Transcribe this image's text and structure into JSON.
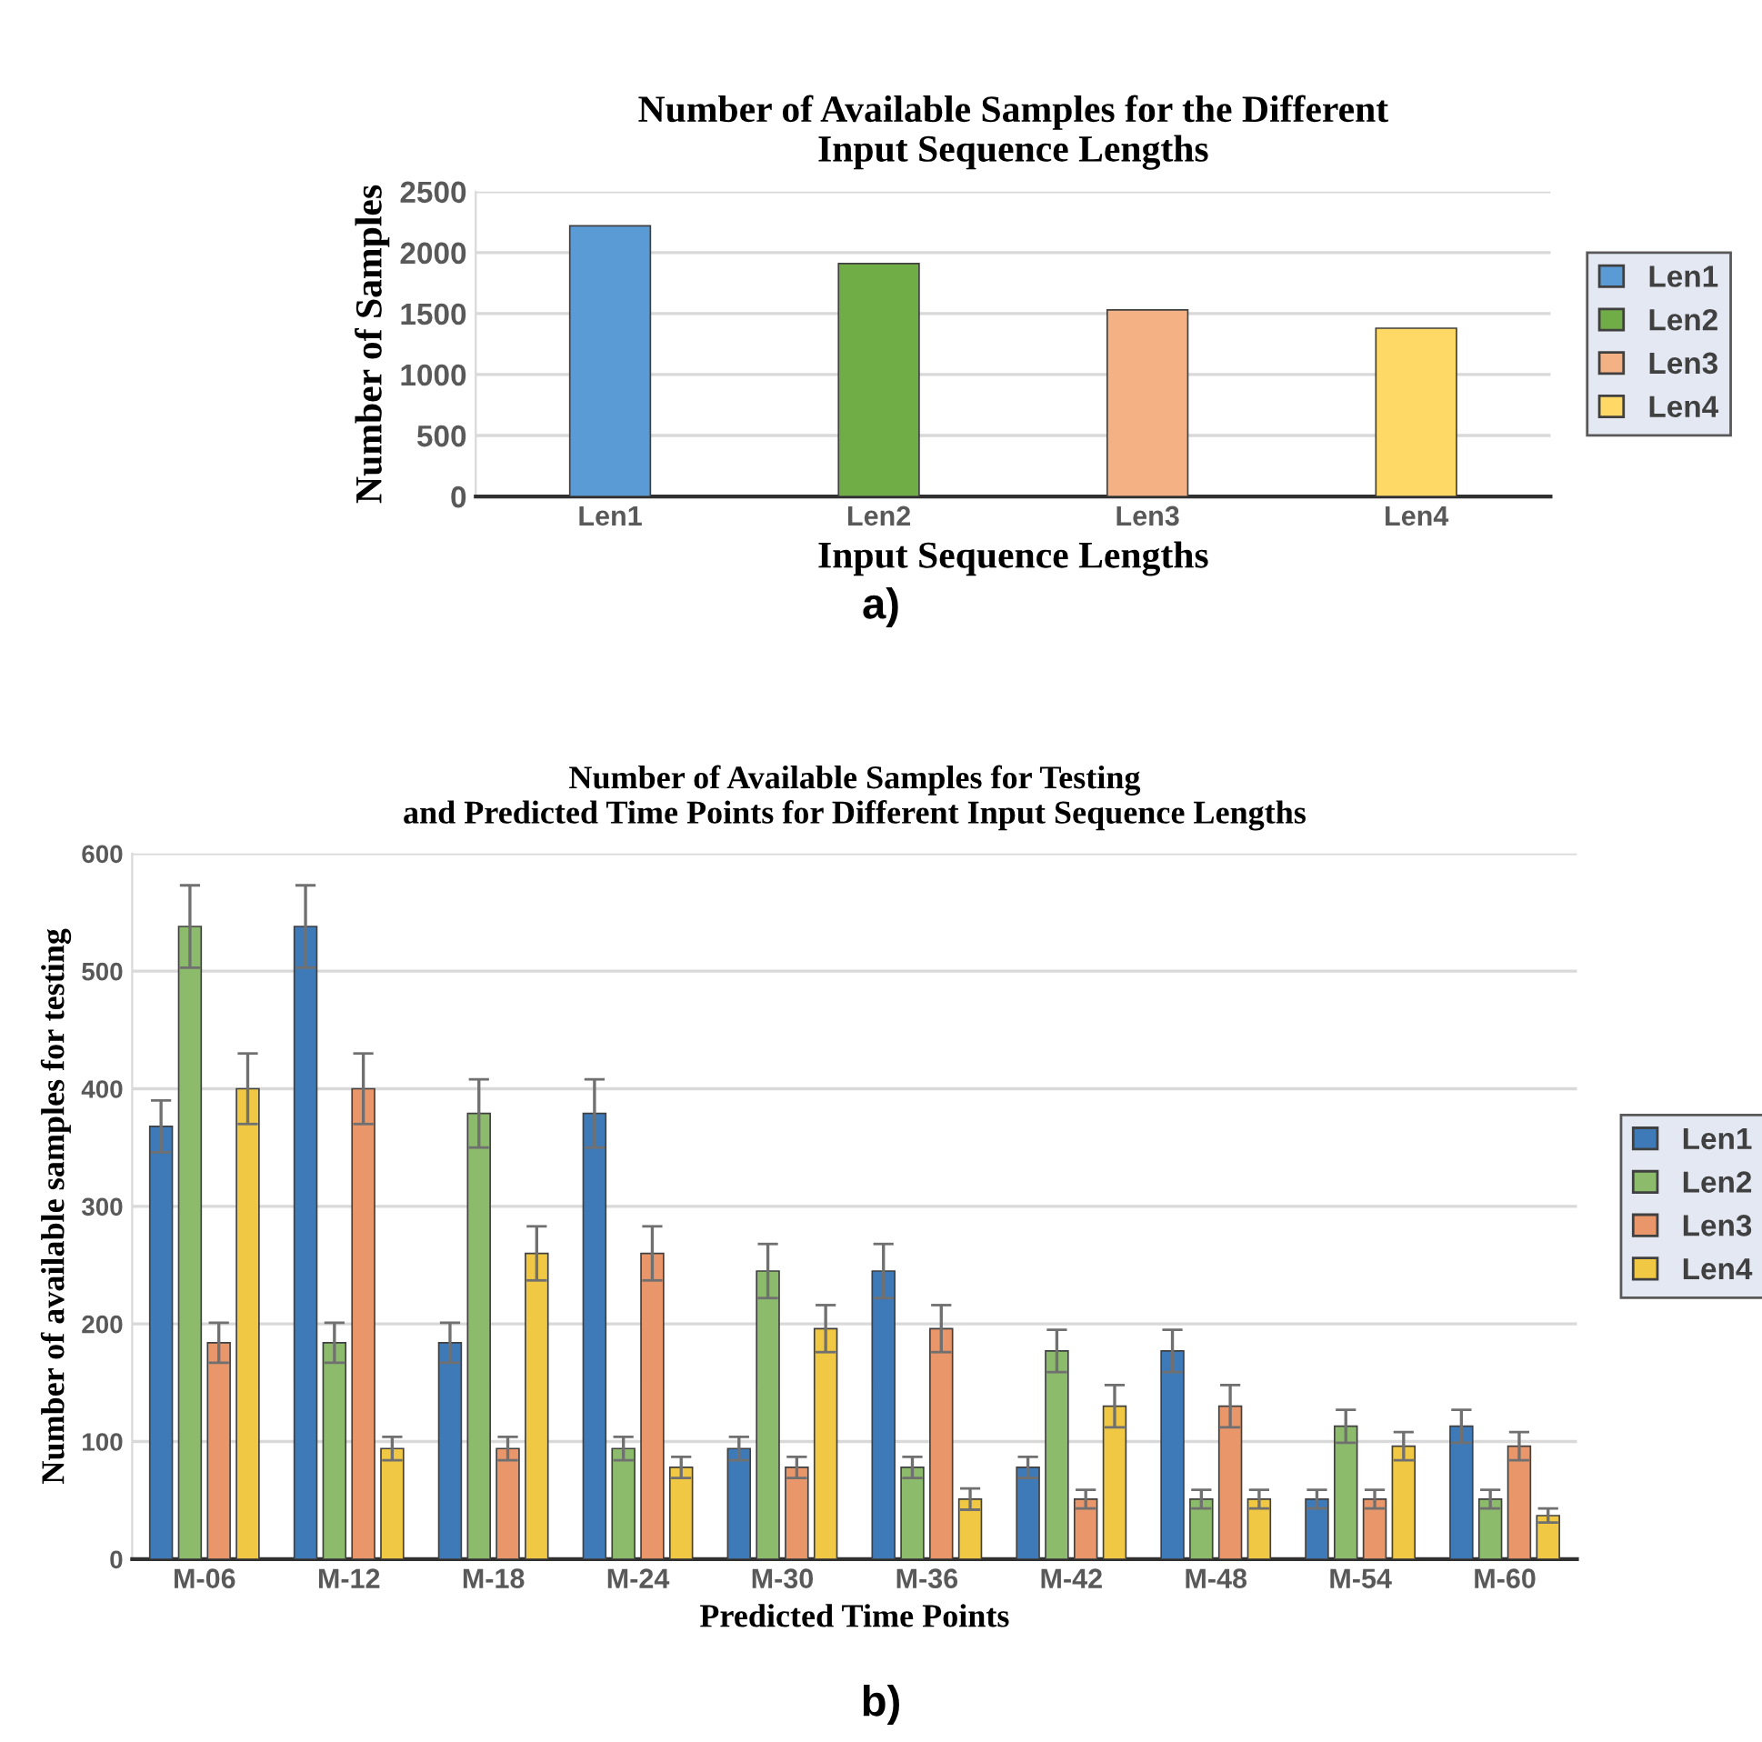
{
  "chart_data": [
    {
      "type": "bar",
      "title": "Number of Available Samples for the Different\nInput Sequence Lengths",
      "xlabel": "Input Sequence Lengths",
      "ylabel": "Number of Samples",
      "annotations": [
        "a)"
      ],
      "categories": [
        "Len1",
        "Len2",
        "Len3",
        "Len4"
      ],
      "series": [
        {
          "name": "Len1",
          "color": "#5b9bd5",
          "values": [
            2220,
            null,
            null,
            null
          ]
        },
        {
          "name": "Len2",
          "color": "#70ad47",
          "values": [
            null,
            1910,
            null,
            null
          ]
        },
        {
          "name": "Len3",
          "color": "#f4b183",
          "values": [
            null,
            null,
            1530,
            null
          ]
        },
        {
          "name": "Len4",
          "color": "#ffd966",
          "values": [
            null,
            null,
            null,
            1380
          ]
        }
      ],
      "ylim": [
        0,
        2500
      ],
      "yticks": [
        0,
        500,
        1000,
        1500,
        2000,
        2500
      ],
      "grid": "y",
      "legend": "right"
    },
    {
      "type": "bar",
      "title": "Number of Available Samples for Testing\nand Predicted Time Points for Different Input Sequence Lengths",
      "xlabel": "Predicted Time Points",
      "ylabel": "Number of available samples for testing",
      "annotations": [
        "b)"
      ],
      "categories": [
        "M-06",
        "M-12",
        "M-18",
        "M-24",
        "M-30",
        "M-36",
        "M-42",
        "M-48",
        "M-54",
        "M-60"
      ],
      "series": [
        {
          "name": "Len1",
          "color": "#3f7ab8",
          "values": [
            368,
            538,
            184,
            379,
            94,
            245,
            78,
            177,
            51,
            113
          ],
          "errors": [
            22,
            35,
            17,
            29,
            10,
            23,
            9,
            18,
            8,
            14
          ]
        },
        {
          "name": "Len2",
          "color": "#8cbb6c",
          "values": [
            538,
            184,
            379,
            94,
            245,
            78,
            177,
            51,
            113,
            51
          ],
          "errors": [
            35,
            17,
            29,
            10,
            23,
            9,
            18,
            8,
            14,
            8
          ]
        },
        {
          "name": "Len3",
          "color": "#e9966b",
          "values": [
            184,
            400,
            94,
            260,
            78,
            196,
            51,
            130,
            51,
            96
          ],
          "errors": [
            17,
            30,
            10,
            23,
            9,
            20,
            8,
            18,
            8,
            12
          ]
        },
        {
          "name": "Len4",
          "color": "#f0c843",
          "values": [
            400,
            94,
            260,
            78,
            196,
            51,
            130,
            51,
            96,
            37
          ],
          "errors": [
            30,
            10,
            23,
            9,
            20,
            9,
            18,
            8,
            12,
            6
          ]
        }
      ],
      "ylim": [
        0,
        600
      ],
      "yticks": [
        0,
        100,
        200,
        300,
        400,
        500,
        600
      ],
      "grid": "y",
      "legend": "right"
    }
  ]
}
